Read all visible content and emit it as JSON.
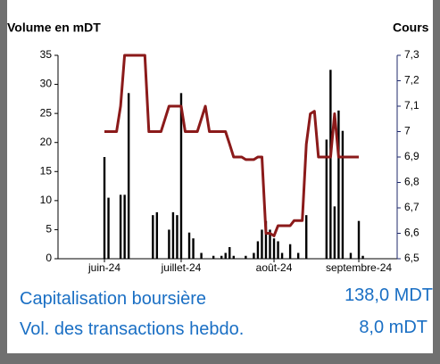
{
  "chart_data": {
    "type": "bar",
    "ylabel": "Volume en mDT",
    "y2label": "Cours",
    "categories": [
      null,
      null,
      null,
      null,
      null,
      null,
      null,
      null,
      null,
      null,
      null,
      "juin-24",
      null,
      null,
      null,
      null,
      null,
      null,
      null,
      null,
      null,
      null,
      null,
      null,
      null,
      null,
      null,
      null,
      null,
      null,
      "juillet-24",
      null,
      null,
      null,
      null,
      null,
      null,
      null,
      null,
      null,
      null,
      null,
      null,
      null,
      null,
      null,
      null,
      null,
      null,
      null,
      null,
      null,
      null,
      "août-24",
      null,
      null,
      null,
      null,
      null,
      null,
      null,
      null,
      null,
      null,
      null,
      null,
      null,
      null,
      null,
      null,
      null,
      null,
      null,
      null,
      "septembre-24",
      null,
      null,
      null,
      null,
      null,
      null,
      null,
      null,
      null
    ],
    "series": [
      {
        "name": "Volume",
        "type": "bar",
        "color": "#000000",
        "values": [
          0,
          0,
          0,
          0,
          0,
          0,
          0,
          0,
          0,
          0,
          0,
          17.5,
          10.5,
          0,
          0,
          11,
          11,
          28.5,
          0,
          0,
          0,
          0,
          0,
          7.5,
          8,
          0,
          0,
          5,
          8,
          7.5,
          28.5,
          0,
          4.5,
          3.5,
          0,
          1,
          0,
          0,
          0.5,
          0,
          0.5,
          1,
          2,
          0.5,
          0,
          0,
          0.5,
          0,
          1,
          3,
          5,
          6.5,
          5,
          3.5,
          3,
          1,
          0,
          2.5,
          0,
          1,
          0,
          7.5,
          0,
          0,
          0,
          0,
          20.5,
          32.5,
          9,
          25.5,
          22,
          0,
          1,
          0,
          6.5,
          0.5,
          null,
          null,
          null,
          null,
          null,
          null,
          null,
          null
        ]
      },
      {
        "name": "Cours",
        "type": "line",
        "axis": "y2",
        "color": "#8b1a1a",
        "values": [
          null,
          null,
          null,
          null,
          null,
          null,
          null,
          null,
          null,
          null,
          null,
          7.0,
          7.0,
          7.0,
          7.0,
          7.1,
          7.3,
          7.3,
          7.3,
          7.3,
          7.3,
          7.3,
          7.0,
          7.0,
          7.0,
          7.0,
          7.05,
          7.1,
          7.1,
          7.1,
          7.1,
          7.0,
          7.0,
          7.0,
          7.0,
          7.05,
          7.1,
          7.0,
          7.0,
          7.0,
          7.0,
          7.0,
          6.95,
          6.9,
          6.9,
          6.9,
          6.89,
          6.89,
          6.89,
          6.9,
          6.9,
          6.6,
          6.6,
          6.59,
          6.63,
          6.63,
          6.63,
          6.63,
          6.65,
          6.65,
          6.65,
          6.95,
          7.07,
          7.08,
          6.9,
          6.9,
          6.9,
          6.9,
          7.07,
          6.9,
          6.9,
          6.9,
          6.9,
          6.9,
          6.9,
          null,
          null,
          null,
          null,
          null,
          null,
          null,
          null,
          null
        ]
      }
    ],
    "ylim": [
      0,
      35
    ],
    "yticks": [
      0,
      5,
      10,
      15,
      20,
      25,
      30,
      35
    ],
    "y2lim": [
      6.5,
      7.3
    ],
    "y2color": "#1f2a6b",
    "y2ticks": [
      {
        "value": 6.5,
        "label": "6,5"
      },
      {
        "value": 6.6,
        "label": "6,6"
      },
      {
        "value": 6.7,
        "label": "6,7"
      },
      {
        "value": 6.8,
        "label": "6,8"
      },
      {
        "value": 6.9,
        "label": "6,9"
      },
      7,
      {
        "value": 7.1,
        "label": "7,1"
      },
      {
        "value": 7.2,
        "label": "7,2"
      },
      {
        "value": 7.3,
        "label": "7,3"
      }
    ]
  },
  "summary": [
    {
      "label": "Capitalisation boursière",
      "value": "138,0 MDT"
    },
    {
      "label": "Vol. des transactions hebdo.",
      "value": "8,0 mDT"
    }
  ]
}
